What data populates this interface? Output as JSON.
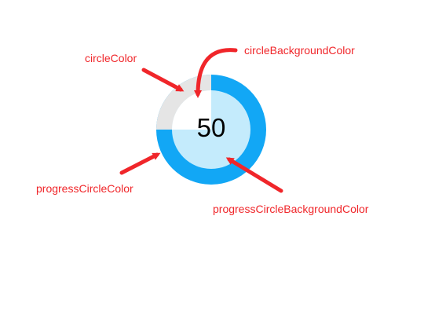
{
  "progress": {
    "value_text": "50",
    "fraction": 0.5
  },
  "labels": {
    "circle_color": "circleColor",
    "circle_background_color": "circleBackgroundColor",
    "progress_circle_color": "progressCircleColor",
    "progress_circle_background_color": "progressCircleBackgroundColor"
  },
  "colors": {
    "annotation": "#f0262a",
    "arrow": "#f0262a",
    "circle_color": "#ffffff",
    "circle_background_color": "#e5e5e5",
    "progress_circle_color": "#12a7f5",
    "progress_circle_background_color": "#c4ebfc",
    "value_text": "#000000"
  }
}
